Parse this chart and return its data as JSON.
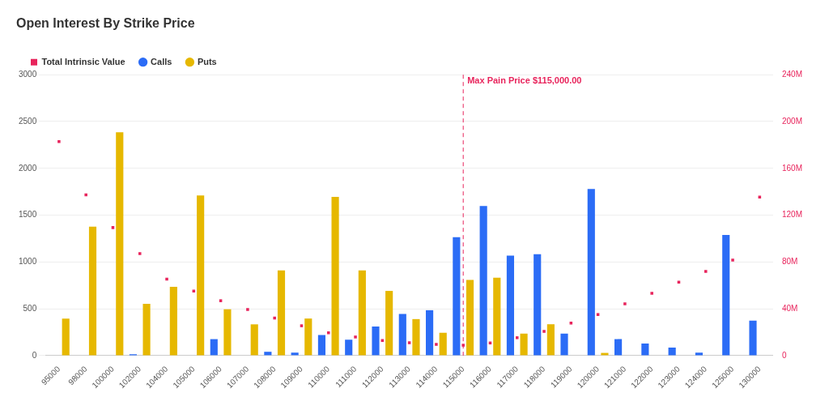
{
  "chart_data": {
    "type": "bar",
    "title": "Open Interest By Strike Price",
    "categories": [
      "95000",
      "98000",
      "100000",
      "102000",
      "104000",
      "105000",
      "106000",
      "107000",
      "108000",
      "109000",
      "110000",
      "111000",
      "112000",
      "113000",
      "114000",
      "115000",
      "116000",
      "117000",
      "118000",
      "119000",
      "120000",
      "121000",
      "122000",
      "123000",
      "124000",
      "125000",
      "130000"
    ],
    "series": [
      {
        "name": "Calls",
        "color": "#2b6cf6",
        "values": [
          0,
          0,
          0,
          15,
          0,
          0,
          176,
          0,
          41,
          32,
          220,
          170,
          311,
          445,
          485,
          1265,
          1597,
          1068,
          1082,
          235,
          1780,
          176,
          129,
          85,
          32,
          1288,
          374
        ]
      },
      {
        "name": "Puts",
        "color": "#e6b800",
        "values": [
          396,
          1377,
          2385,
          554,
          735,
          1711,
          495,
          334,
          911,
          396,
          1696,
          911,
          691,
          390,
          244,
          809,
          832,
          235,
          335,
          0,
          29,
          0,
          0,
          0,
          0,
          0,
          0
        ]
      },
      {
        "name": "Total Intrinsic Value",
        "type": "scatter",
        "axis": "y2",
        "marker": "square",
        "color": "#e8245c",
        "values": [
          182.8,
          137.3,
          109.4,
          87.2,
          65.4,
          55.1,
          46.9,
          39.4,
          32.1,
          25.5,
          19.5,
          15.9,
          12.9,
          11,
          9.6,
          8.9,
          10.8,
          15.3,
          20.7,
          27.8,
          35.1,
          44.2,
          53.2,
          62.8,
          72,
          81.6,
          135.5
        ]
      }
    ],
    "ylim": [
      0,
      3000
    ],
    "yticks": [
      0,
      500,
      1000,
      1500,
      2000,
      2500,
      3000
    ],
    "y2lim": [
      0,
      240
    ],
    "y2ticks": [
      {
        "value": 0,
        "label": "0"
      },
      {
        "value": 40,
        "label": "40M"
      },
      {
        "value": 80,
        "label": "80M"
      },
      {
        "value": 120,
        "label": "120M"
      },
      {
        "value": 160,
        "label": "160M"
      },
      {
        "value": 200,
        "label": "200M"
      },
      {
        "value": 240,
        "label": "240M"
      }
    ],
    "ref_lines": [
      {
        "axis": "x",
        "value": "115000",
        "label": "Max Pain Price $115,000.00",
        "color": "#e8245c",
        "line_style": "dashed"
      }
    ],
    "grid": "y",
    "legend": "top left"
  }
}
